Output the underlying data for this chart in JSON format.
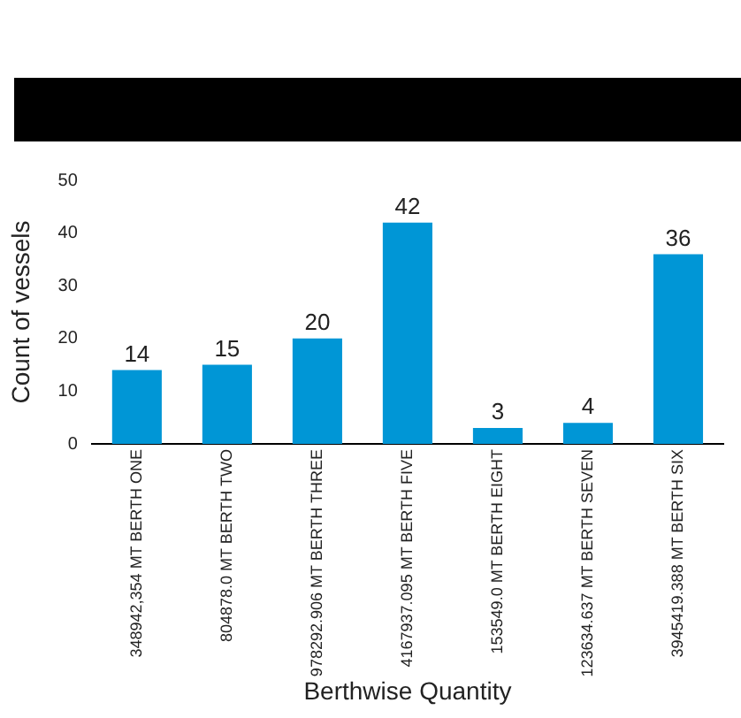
{
  "chart_data": {
    "type": "bar",
    "xlabel": "Berthwise Quantity",
    "ylabel": "Count of vessels",
    "categories": [
      "348942,354 MT BERTH ONE",
      "804878.0 MT BERTH TWO",
      "978292.906 MT BERTH THREE",
      "4167937.095 MT BERTH FIVE",
      "153549.0 MT BERTH EIGHT",
      "123634.637 MT BERTH SEVEN",
      "3945419.388 MT BERTH SIX"
    ],
    "values": [
      14,
      15,
      20,
      42,
      3,
      4,
      36
    ],
    "color": "#0096d6",
    "ylim": [
      0,
      50
    ],
    "yticks": [
      0,
      10,
      20,
      30,
      40,
      50
    ],
    "grid": false,
    "legend": false,
    "data_labels": true
  }
}
